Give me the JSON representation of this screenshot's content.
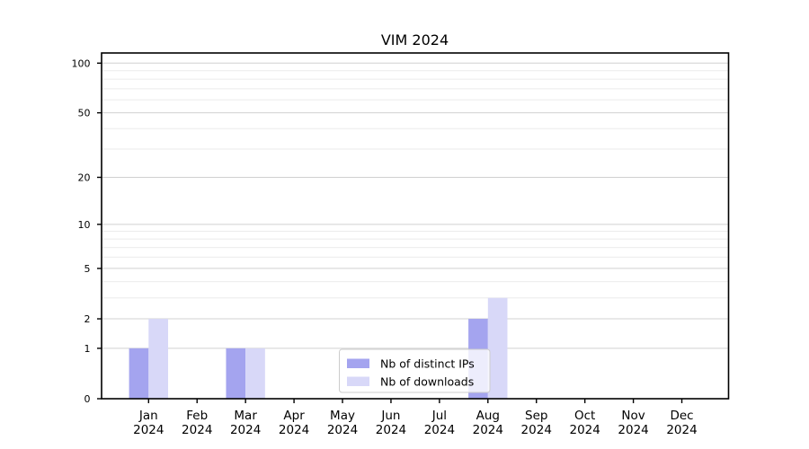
{
  "chart_data": {
    "type": "bar",
    "title": "VIM 2024",
    "categories": [
      "Jan",
      "Feb",
      "Mar",
      "Apr",
      "May",
      "Jun",
      "Jul",
      "Aug",
      "Sep",
      "Oct",
      "Nov",
      "Dec"
    ],
    "category_year": "2024",
    "series": [
      {
        "name": "Nb of distinct IPs",
        "color": "#a4a4ef",
        "values": [
          1,
          0,
          1,
          0,
          0,
          0,
          0,
          2,
          0,
          0,
          0,
          0
        ]
      },
      {
        "name": "Nb of downloads",
        "color": "#d8d8f8",
        "values": [
          2,
          0,
          1,
          0,
          0,
          0,
          0,
          3,
          0,
          0,
          0,
          0
        ]
      }
    ],
    "xlabel": "",
    "ylabel": "",
    "y_axis": {
      "scale": "log10(1+x)",
      "major_ticks": [
        0,
        1,
        2,
        5,
        10,
        20,
        50,
        100
      ],
      "minor_gridlines": [
        3,
        4,
        6,
        7,
        8,
        9,
        30,
        40,
        60,
        70,
        80,
        90
      ],
      "ylim": [
        0,
        120
      ]
    },
    "grid": "both",
    "legend_position": "inside bottom-center",
    "colors": {
      "major_grid": "#d0d0d0",
      "minor_grid": "#ebebeb",
      "axis": "#000000",
      "legend_border": "#cccccc",
      "legend_background": "rgba(255,255,255,0.8)"
    }
  }
}
